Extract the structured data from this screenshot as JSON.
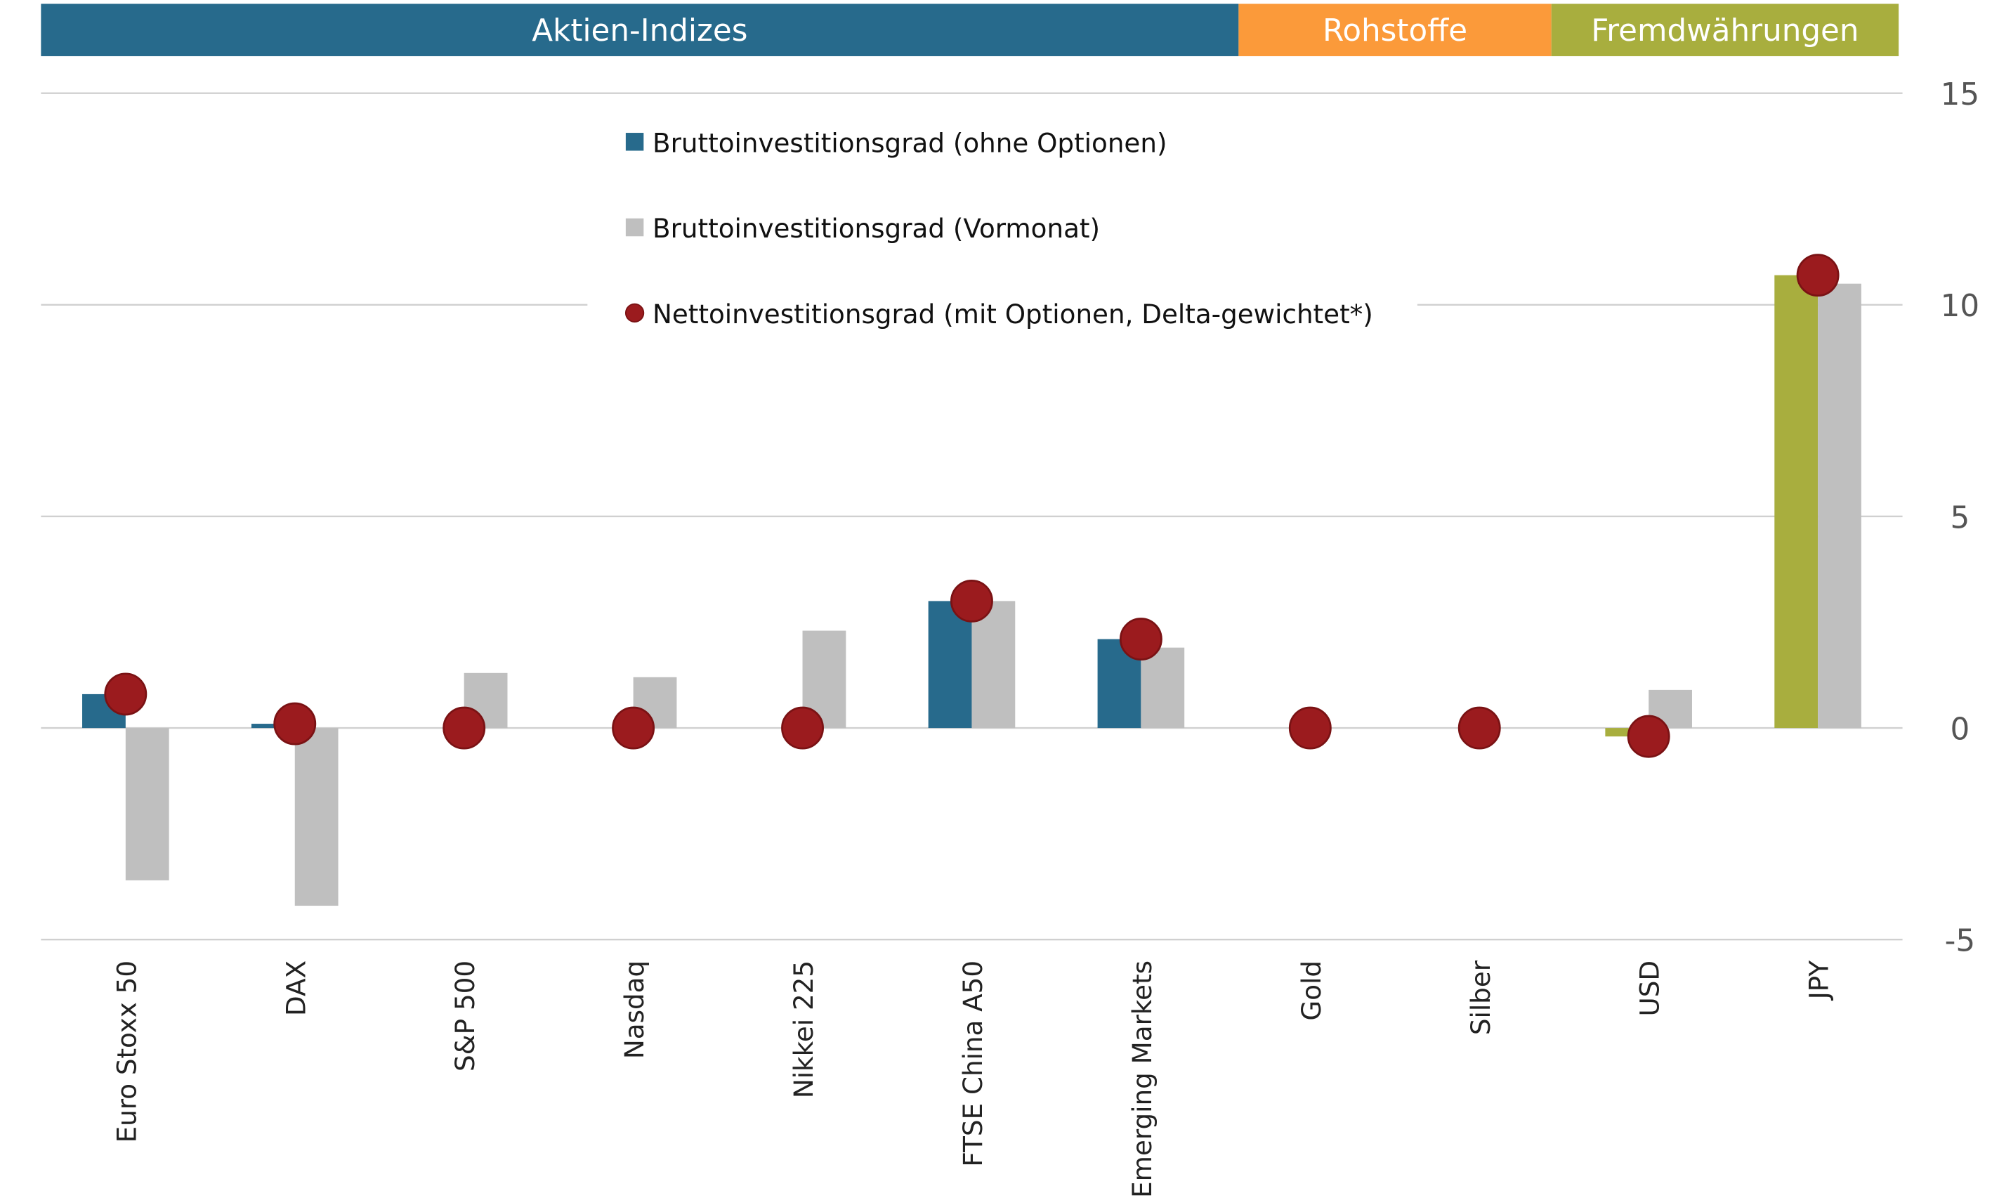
{
  "chart_data": {
    "type": "bar",
    "groups": [
      {
        "label": "Aktien-Indizes",
        "color": "#276a8c",
        "categories": [
          "Euro Stoxx 50",
          "DAX",
          "S&P 500",
          "Nasdaq",
          "Nikkei 225",
          "FTSE China A50",
          "Emerging Markets"
        ]
      },
      {
        "label": "Rohstoffe",
        "color": "#fb9a3a",
        "categories": [
          "Gold",
          "Silber"
        ]
      },
      {
        "label": "Fremdwährungen",
        "color": "#a8ae3e",
        "categories": [
          "USD",
          "JPY"
        ]
      }
    ],
    "categories": [
      "Euro Stoxx 50",
      "DAX",
      "S&P 500",
      "Nasdaq",
      "Nikkei 225",
      "FTSE China A50",
      "Emerging Markets",
      "Gold",
      "Silber",
      "USD",
      "JPY"
    ],
    "series": [
      {
        "name": "Bruttoinvestitionsgrad (ohne Optionen)",
        "kind": "bar",
        "color": "#276a8c",
        "alt_color_currencies": "#a8ae3e",
        "values": [
          0.8,
          0.1,
          0,
          0,
          0,
          3.0,
          2.1,
          0,
          0,
          -0.2,
          10.7
        ]
      },
      {
        "name": "Bruttoinvestitionsgrad (Vormonat)",
        "kind": "bar",
        "color": "#bfbfbf",
        "values": [
          -3.6,
          -4.2,
          1.3,
          1.2,
          2.3,
          3.0,
          1.9,
          0,
          0,
          0.9,
          10.5
        ]
      },
      {
        "name": "Nettoinvestitionsgrad (mit Optionen, Delta-gewichtet*)",
        "kind": "marker",
        "color": "#9b1b1e",
        "values": [
          0.8,
          0.1,
          0,
          0,
          0,
          3.0,
          2.1,
          0,
          0,
          -0.2,
          10.7
        ]
      }
    ],
    "ylim": [
      -5,
      15
    ],
    "yticks": [
      -5,
      0,
      5,
      10,
      15
    ],
    "y_axis_side": "right",
    "grid": true,
    "legend_placement": "top-center"
  }
}
